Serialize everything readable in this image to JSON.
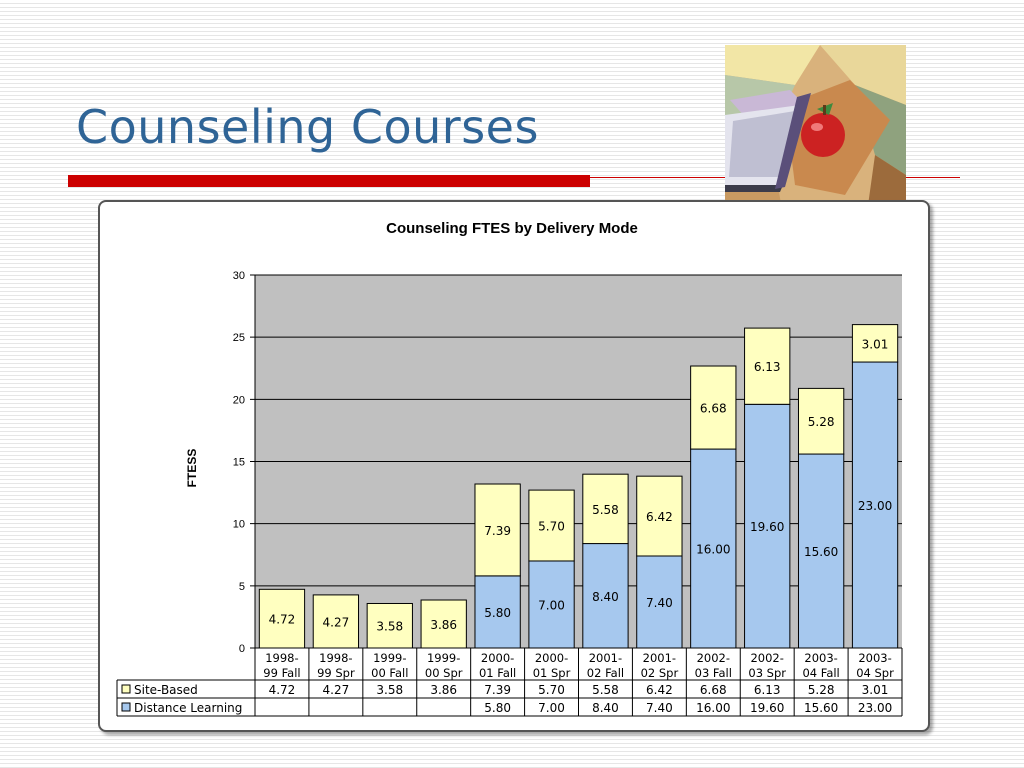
{
  "slide": {
    "title": "Counseling Courses"
  },
  "chart_data": {
    "type": "bar",
    "stacked": true,
    "title": "Counseling FTES by Delivery Mode",
    "ylabel": "FTESS",
    "xlabel": "",
    "ylim": [
      0,
      30
    ],
    "yticks": [
      0,
      5,
      10,
      15,
      20,
      25,
      30
    ],
    "grid": true,
    "legend": "data-table",
    "categories": [
      [
        "1998-",
        "99 Fall"
      ],
      [
        "1998-",
        "99 Spr"
      ],
      [
        "1999-",
        "00 Fall"
      ],
      [
        "1999-",
        "00 Spr"
      ],
      [
        "2000-",
        "01 Fall"
      ],
      [
        "2000-",
        "01 Spr"
      ],
      [
        "2001-",
        "02 Fall"
      ],
      [
        "2001-",
        "02 Spr"
      ],
      [
        "2002-",
        "03 Fall"
      ],
      [
        "2002-",
        "03 Spr"
      ],
      [
        "2003-",
        "04 Fall"
      ],
      [
        "2003-",
        "04 Spr"
      ]
    ],
    "series": [
      {
        "name": "Site-Based",
        "color": "#ffffc0",
        "values": [
          4.72,
          4.27,
          3.58,
          3.86,
          7.39,
          5.7,
          5.58,
          6.42,
          6.68,
          6.13,
          5.28,
          3.01
        ],
        "labels": [
          "4.72",
          "4.27",
          "3.58",
          "3.86",
          "7.39",
          "5.70",
          "5.58",
          "6.42",
          "6.68",
          "6.13",
          "5.28",
          "3.01"
        ]
      },
      {
        "name": "Distance Learning",
        "color": "#a6c8ee",
        "values": [
          null,
          null,
          null,
          null,
          5.8,
          7.0,
          8.4,
          7.4,
          16.0,
          19.6,
          15.6,
          23.0
        ],
        "labels": [
          "",
          "",
          "",
          "",
          "5.80",
          "7.00",
          "8.40",
          "7.40",
          "16.00",
          "19.60",
          "15.60",
          "23.00"
        ]
      }
    ]
  },
  "colors": {
    "title": "#2f6496",
    "accent_bar": "#cc0000",
    "plot_background": "#c0c0c0"
  },
  "clipart": {
    "icon": "book-and-apple-clipart"
  }
}
